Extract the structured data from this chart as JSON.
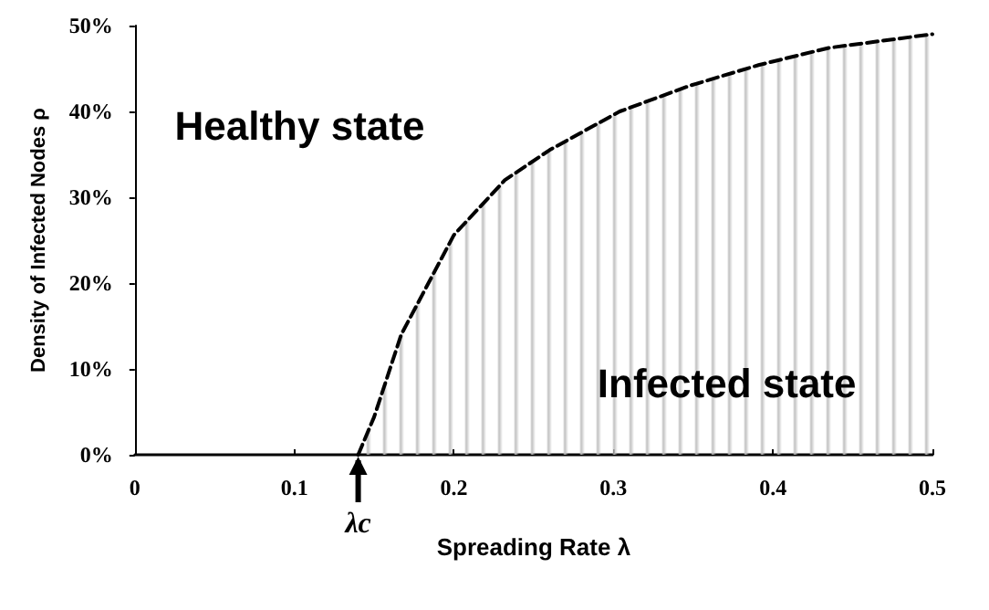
{
  "chart_data": {
    "type": "area",
    "xlabel": "Spreading Rate λ",
    "ylabel": "Density of Infected Nodes ρ",
    "x": [
      0.14,
      0.15,
      0.167,
      0.2,
      0.232,
      0.26,
      0.304,
      0.348,
      0.391,
      0.435,
      0.5
    ],
    "series": [
      {
        "color": "#000000",
        "values": [
          0,
          4.4,
          14,
          25.6,
          32,
          35.5,
          40,
          43,
          45.4,
          47.4,
          49
        ]
      }
    ],
    "xlim": [
      0,
      0.5
    ],
    "xticks": [
      0,
      0.1,
      0.2,
      0.3,
      0.4,
      0.5
    ],
    "ylim": [
      0,
      50
    ],
    "yticks": [
      {
        "value": 0,
        "label": "0%"
      },
      {
        "value": 10,
        "label": "10%"
      },
      {
        "value": 20,
        "label": "20%"
      },
      {
        "value": 30,
        "label": "30%"
      },
      {
        "value": 40,
        "label": "40%"
      },
      {
        "value": 50,
        "label": "50%"
      }
    ],
    "grid": false,
    "marker": "none",
    "line_style": "dashed",
    "annotations": [
      "Healthy state",
      "Infected state",
      {
        "text": "λc",
        "x": 0.14,
        "y": 0
      }
    ]
  }
}
